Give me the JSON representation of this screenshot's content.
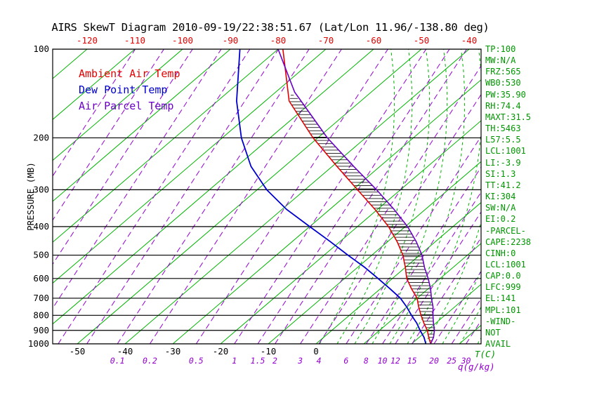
{
  "title": "AIRS SkewT Diagram 2010-09-19/22:38:51.67 (Lat/Lon 11.96/-138.80 deg)",
  "colors": {
    "title": "#000000",
    "axis": "#000000",
    "temp": "#e60000",
    "dewpoint": "#0000cd",
    "parcel": "#6a00c8",
    "grid_green": "#00b400",
    "mixing_line": "#9400d3",
    "mixing_label": "#9400d3",
    "stats": "#009600"
  },
  "legend": {
    "items": [
      {
        "label": "Ambient Air Temp",
        "color_key": "temp"
      },
      {
        "label": "Dew Point Temp",
        "color_key": "dewpoint"
      },
      {
        "label": "Air Parcel Temp",
        "color_key": "parcel"
      }
    ]
  },
  "axes": {
    "pressure_label": "PRESSURE (MB)",
    "pressure_ticks": [
      100,
      200,
      300,
      400,
      500,
      600,
      700,
      800,
      900,
      1000
    ],
    "top_temp_ticks": [
      -120,
      -110,
      -100,
      -90,
      -80,
      -70,
      -60,
      -50,
      -40
    ],
    "bottom_temp_ticks": [
      -50,
      -40,
      -30,
      -20,
      -10,
      0
    ],
    "mixing_ratio_ticks": [
      0.1,
      0.2,
      0.5,
      1,
      1.5,
      2,
      3,
      4,
      6,
      8,
      10,
      12,
      15,
      20,
      25,
      30
    ],
    "temp_unit_label": "T(C)",
    "mixing_unit_label": "q(g/kg)"
  },
  "side_panel": {
    "items": [
      "TP:100",
      "MW:N/A",
      "FRZ:565",
      "WB0:530",
      "PW:35.90",
      "RH:74.4",
      "MAXT:31.5",
      "TH:5463",
      "L57:5.5",
      "LCL:1001",
      "LI:-3.9",
      "SI:1.3",
      "TT:41.2",
      "KI:304",
      "SW:N/A",
      "EI:0.2",
      "-PARCEL-",
      "CAPE:2238",
      "CINH:0",
      "LCL:1001",
      "CAP:0.0",
      "LFC:999",
      "EL:141",
      "MPL:101",
      "-WIND-",
      "NOT",
      "AVAIL"
    ]
  },
  "chart_data": {
    "type": "line",
    "variant": "skew-t-log-p",
    "title": "AIRS SkewT Diagram 2010-09-19/22:38:51.67 (Lat/Lon 11.96/-138.80 deg)",
    "y_axis": {
      "label": "PRESSURE (MB)",
      "scale": "log",
      "range": [
        100,
        1000
      ],
      "ticks": [
        100,
        200,
        300,
        400,
        500,
        600,
        700,
        800,
        900,
        1000
      ]
    },
    "x_axis": {
      "label": "T(C)",
      "skew": "45deg",
      "top_ticks_at_100mb": [
        -120,
        -110,
        -100,
        -90,
        -80,
        -70,
        -60,
        -50,
        -40
      ],
      "bottom_ticks_at_1000mb": [
        -50,
        -40,
        -30,
        -20,
        -10,
        0
      ]
    },
    "mixing_ratio_ticks_g_per_kg": [
      0.1,
      0.2,
      0.5,
      1,
      1.5,
      2,
      3,
      4,
      6,
      8,
      10,
      12,
      15,
      20,
      25,
      30
    ],
    "series": [
      {
        "name": "Ambient Air Temp",
        "points": [
          [
            1000,
            24
          ],
          [
            950,
            22
          ],
          [
            900,
            20
          ],
          [
            850,
            17.5
          ],
          [
            800,
            15
          ],
          [
            750,
            12.5
          ],
          [
            700,
            10
          ],
          [
            650,
            6.5
          ],
          [
            600,
            3
          ],
          [
            550,
            0
          ],
          [
            500,
            -3.5
          ],
          [
            450,
            -8
          ],
          [
            400,
            -13.5
          ],
          [
            350,
            -20.5
          ],
          [
            300,
            -29
          ],
          [
            250,
            -39
          ],
          [
            200,
            -51
          ],
          [
            150,
            -65
          ],
          [
            100,
            -79
          ]
        ]
      },
      {
        "name": "Dew Point Temp",
        "points": [
          [
            1000,
            23
          ],
          [
            950,
            21
          ],
          [
            900,
            18.5
          ],
          [
            850,
            16
          ],
          [
            800,
            13
          ],
          [
            750,
            10
          ],
          [
            700,
            6.5
          ],
          [
            650,
            2
          ],
          [
            600,
            -3
          ],
          [
            550,
            -8.5
          ],
          [
            500,
            -15
          ],
          [
            450,
            -22
          ],
          [
            400,
            -30
          ],
          [
            350,
            -39
          ],
          [
            300,
            -48
          ],
          [
            250,
            -57
          ],
          [
            200,
            -66
          ],
          [
            150,
            -76
          ],
          [
            100,
            -88
          ]
        ]
      },
      {
        "name": "Air Parcel Temp",
        "points": [
          [
            1000,
            24
          ],
          [
            950,
            23
          ],
          [
            900,
            21.5
          ],
          [
            850,
            19.5
          ],
          [
            800,
            17.5
          ],
          [
            750,
            15.5
          ],
          [
            700,
            13
          ],
          [
            650,
            10.5
          ],
          [
            600,
            7.5
          ],
          [
            550,
            4
          ],
          [
            500,
            0.5
          ],
          [
            450,
            -4
          ],
          [
            400,
            -9.5
          ],
          [
            350,
            -16.5
          ],
          [
            300,
            -25
          ],
          [
            250,
            -35.5
          ],
          [
            200,
            -48
          ],
          [
            150,
            -62.5
          ],
          [
            140,
            -66
          ],
          [
            100,
            -80
          ]
        ]
      }
    ],
    "points_format": "[pressure_mb, temperature_c]",
    "cape_hatch": "horizontally hatched area between Ambient Air Temp and Air Parcel Temp curves from about 1000mb up to the equilibrium level near 141mb"
  }
}
